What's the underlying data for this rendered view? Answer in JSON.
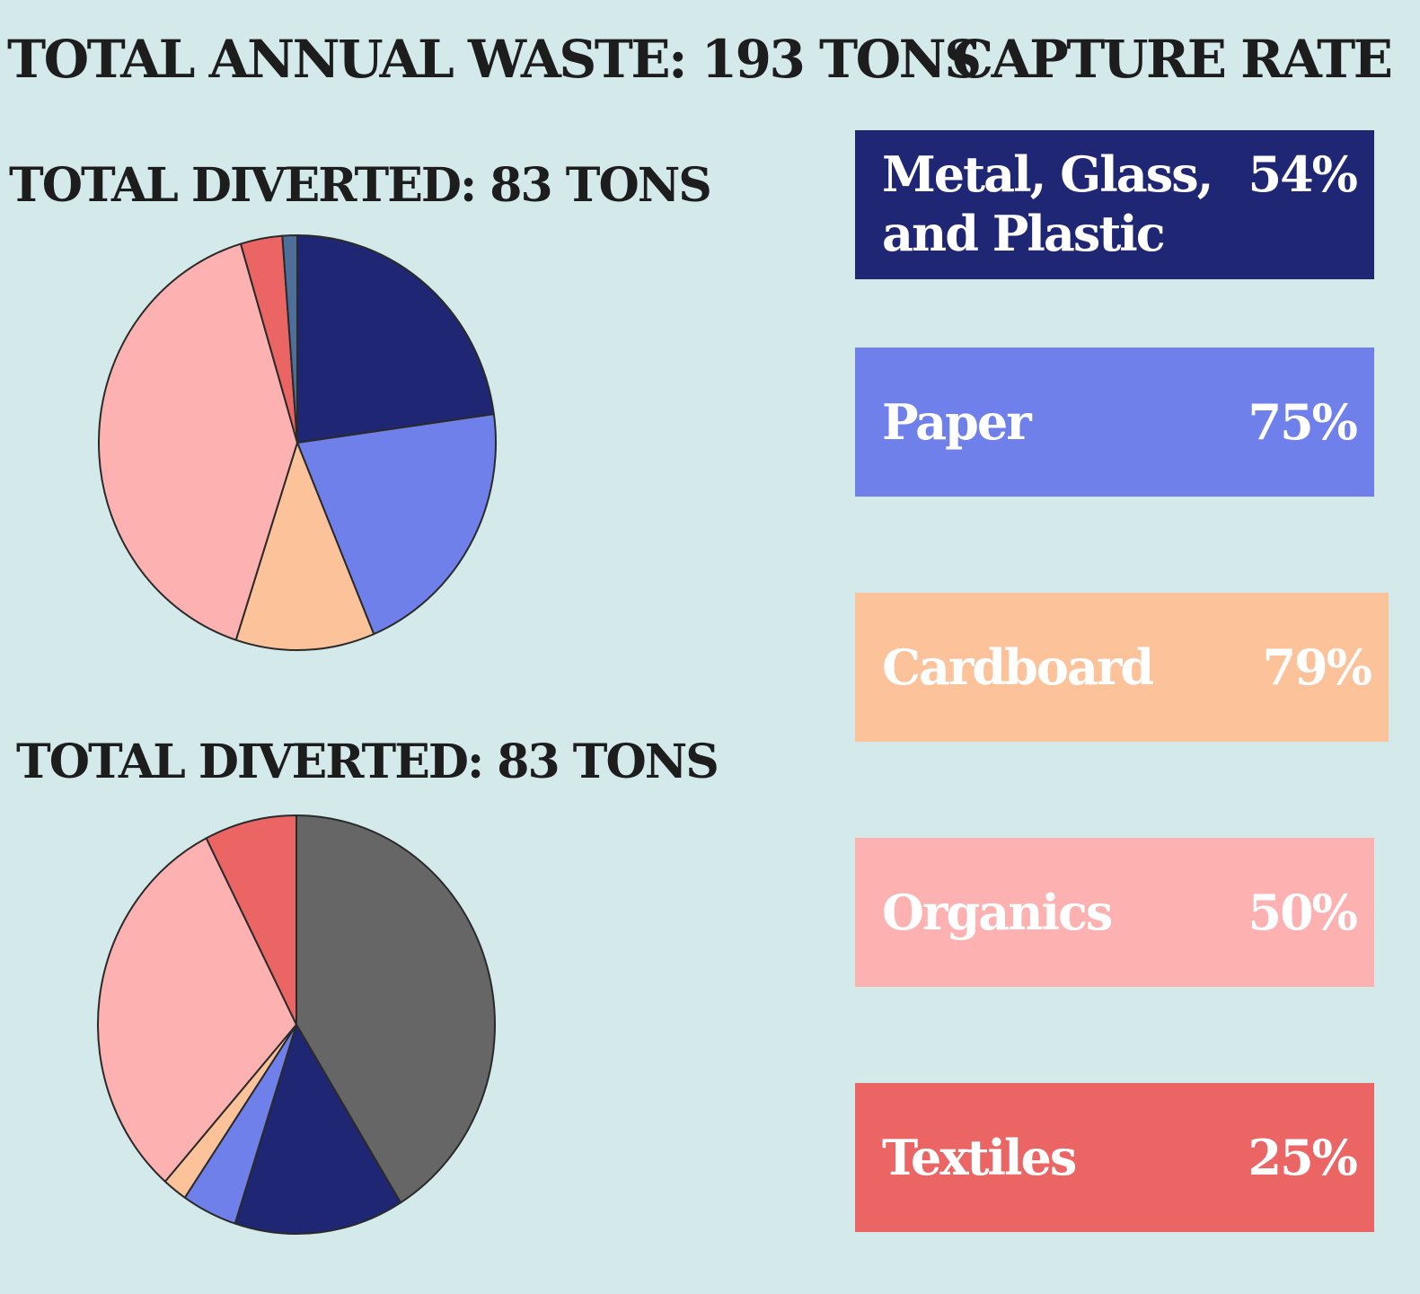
{
  "titles": {
    "main": "TOTAL ANNUAL WASTE: 193 TONS",
    "capture": "CAPTURE RATE",
    "pie1": "TOTAL DIVERTED: 83 TONS",
    "pie2": "TOTAL DIVERTED: 83 TONS"
  },
  "colors": {
    "background": "#d4e9ea",
    "metal_glass_plastic": "#1f2673",
    "paper": "#6f80ea",
    "cardboard": "#fcc39b",
    "organics": "#fdb1b1",
    "textiles": "#ec6565",
    "other": "#666666",
    "small_slice": "#4e6f99",
    "slice_outline": "#2a2a2a"
  },
  "capture_rates": [
    {
      "label": "Metal, Glass, and Plastic",
      "value": "54%",
      "color": "#1f2673"
    },
    {
      "label": "Paper",
      "value": "75%",
      "color": "#6f80ea"
    },
    {
      "label": "Cardboard",
      "value": "79%",
      "color": "#fcc39b"
    },
    {
      "label": "Organics",
      "value": "50%",
      "color": "#fdb1b1"
    },
    {
      "label": "Textiles",
      "value": "25%",
      "color": "#ec6565"
    }
  ],
  "chart_data": [
    {
      "type": "pie",
      "title": "TOTAL DIVERTED: 83 TONS",
      "slices": [
        {
          "share": 0.228,
          "color": "#1f2673"
        },
        {
          "share": 0.209,
          "color": "#6f80ea"
        },
        {
          "share": 0.113,
          "color": "#fcc39b"
        },
        {
          "share": 0.404,
          "color": "#fdb1b1"
        },
        {
          "share": 0.034,
          "color": "#ec6565"
        },
        {
          "share": 0.012,
          "color": "#4e6f99"
        }
      ]
    },
    {
      "type": "pie",
      "title": "TOTAL DIVERTED: 83 TONS",
      "slices": [
        {
          "share": 0.412,
          "color": "#666666"
        },
        {
          "share": 0.138,
          "color": "#1f2673"
        },
        {
          "share": 0.045,
          "color": "#6f80ea"
        },
        {
          "share": 0.02,
          "color": "#fcc39b"
        },
        {
          "share": 0.31,
          "color": "#fdb1b1"
        },
        {
          "share": 0.075,
          "color": "#ec6565"
        }
      ]
    },
    {
      "type": "table",
      "title": "CAPTURE RATE",
      "categories": [
        "Metal, Glass, and Plastic",
        "Paper",
        "Cardboard",
        "Organics",
        "Textiles"
      ],
      "values": [
        54,
        75,
        79,
        50,
        25
      ]
    }
  ]
}
